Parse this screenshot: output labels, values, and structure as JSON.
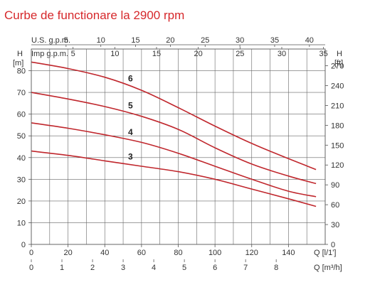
{
  "title": "Curbe de functionare la 2900 rpm",
  "colors": {
    "title": "#d6282b",
    "curve": "#c0272d",
    "grid": "#666666",
    "text": "#333333"
  },
  "axis_labels": {
    "us_gpm": "U.S. g.p.m.",
    "imp_gpm": "Imp g.p.m.",
    "h_left": "H",
    "h_left_unit": "[m]",
    "h_right": "H",
    "h_right_unit": "[ft]",
    "q_ls": "Q [l/1']",
    "q_m3h": "Q [m³/h]"
  },
  "chart_data": {
    "type": "line",
    "title": "Curbe de functionare la 2900 rpm",
    "xlabel": "Q [l/1']",
    "ylabel": "H [m]",
    "xlim": [
      0,
      160
    ],
    "ylim": [
      0,
      90
    ],
    "grid": true,
    "x_ticks": [
      "0",
      "20",
      "40",
      "60",
      "80",
      "100",
      "120",
      "140"
    ],
    "y_ticks": [
      "0",
      "10",
      "20",
      "30",
      "40",
      "50",
      "60",
      "70",
      "80"
    ],
    "secondary_axes": {
      "q_m3h": {
        "label": "Q [m³/h]",
        "ticks": [
          "0",
          "1",
          "2",
          "3",
          "4",
          "5",
          "6",
          "7",
          "8"
        ],
        "lim": [
          0,
          9.6
        ]
      },
      "us_gpm": {
        "label": "U.S. g.p.m.",
        "ticks": [
          "5",
          "10",
          "15",
          "20",
          "25",
          "30",
          "35",
          "40"
        ],
        "lim": [
          0,
          42.27
        ]
      },
      "imp_gpm": {
        "label": "Imp g.p.m.",
        "ticks": [
          "5",
          "10",
          "15",
          "20",
          "25",
          "30",
          "35"
        ],
        "lim": [
          0,
          35.2
        ]
      },
      "h_ft": {
        "label": "H [ft]",
        "ticks": [
          "0",
          "30",
          "60",
          "90",
          "120",
          "150",
          "180",
          "210",
          "240",
          "270"
        ],
        "lim": [
          0,
          295.3
        ]
      }
    },
    "series": [
      {
        "name": "3",
        "x": [
          0,
          20,
          40,
          60,
          80,
          100,
          120,
          140,
          155
        ],
        "y": [
          43,
          41,
          38.5,
          36,
          33.5,
          30,
          25.5,
          21,
          17.5
        ]
      },
      {
        "name": "4",
        "x": [
          0,
          20,
          40,
          60,
          80,
          100,
          120,
          140,
          155
        ],
        "y": [
          56,
          53.5,
          50.5,
          47,
          42,
          36,
          30,
          24.5,
          22
        ]
      },
      {
        "name": "5",
        "x": [
          0,
          20,
          40,
          60,
          80,
          100,
          120,
          140,
          155
        ],
        "y": [
          70,
          67,
          63.5,
          59,
          53,
          44.5,
          37,
          31.5,
          28
        ]
      },
      {
        "name": "6",
        "x": [
          0,
          20,
          40,
          60,
          80,
          100,
          120,
          140,
          155
        ],
        "y": [
          84,
          81,
          77,
          71,
          63,
          54.5,
          46.5,
          39.5,
          34.5
        ]
      }
    ]
  }
}
